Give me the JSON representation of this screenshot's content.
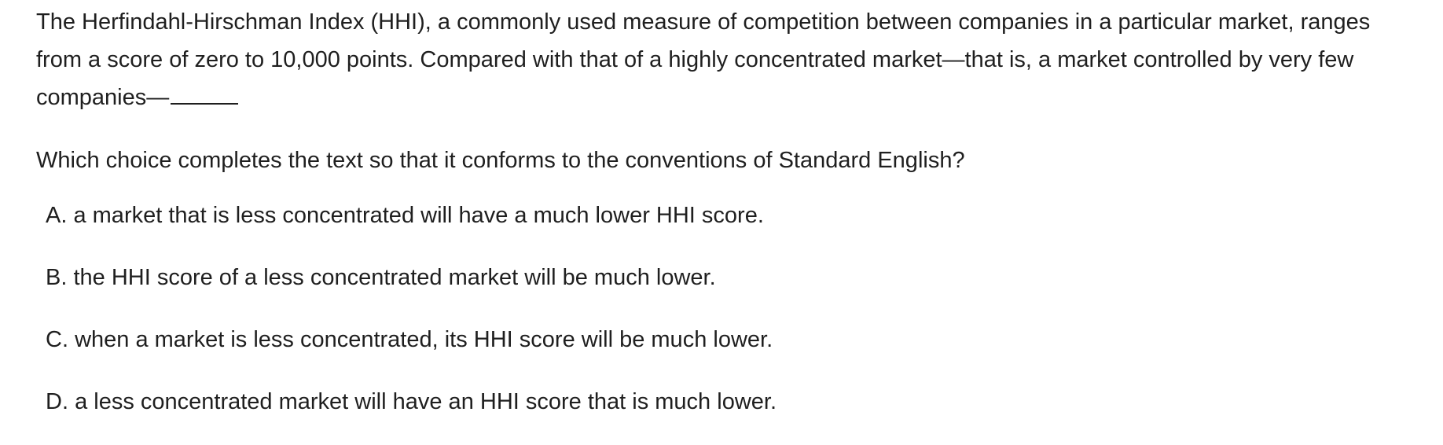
{
  "passage": {
    "text": "The Herfindahl-Hirschman Index (HHI), a commonly used measure of competition between companies in a particular market, ranges from a score of zero to 10,000 points. Compared with that of a highly concentrated market—that is, a market controlled by very few companies—"
  },
  "question": {
    "prompt": "Which choice completes the text so that it conforms to the conventions of Standard English?"
  },
  "choices": [
    {
      "letter": "A.",
      "text": "a market that is less concentrated will have a much lower HHI score."
    },
    {
      "letter": "B.",
      "text": "the HHI score of a less concentrated market will be much lower."
    },
    {
      "letter": "C.",
      "text": "when a market is less concentrated, its HHI score will be much lower."
    },
    {
      "letter": "D.",
      "text": "a less concentrated market will have an HHI score that is much lower."
    }
  ]
}
